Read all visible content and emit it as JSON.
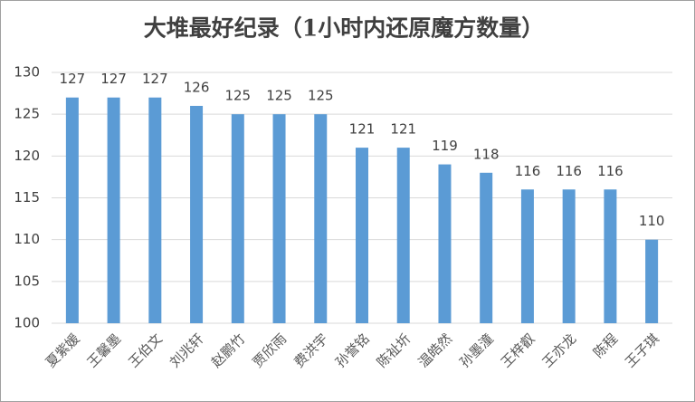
{
  "chart_data": {
    "type": "bar",
    "title": "大堆最好纪录（1小时内还原魔方数量）",
    "categories": [
      "夏紫媛",
      "王馨墨",
      "王伯文",
      "刘兆轩",
      "赵鹏竹",
      "贾欣雨",
      "费洪宇",
      "孙誉铭",
      "陈祉圻",
      "温皓然",
      "孙墨潼",
      "王梓叡",
      "王亦龙",
      "陈程",
      "王子琪"
    ],
    "values": [
      127,
      127,
      127,
      126,
      125,
      125,
      125,
      121,
      121,
      119,
      118,
      116,
      116,
      116,
      110
    ],
    "color": "#5b9bd5",
    "ylim": [
      100,
      130
    ],
    "yticks": [
      100,
      105,
      110,
      115,
      120,
      125,
      130
    ],
    "grid": true
  }
}
